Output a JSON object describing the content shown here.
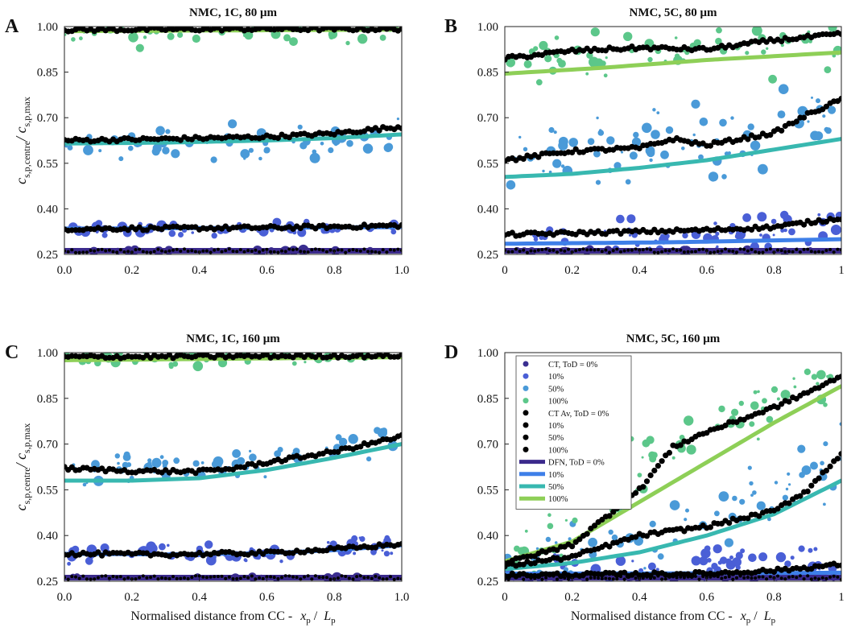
{
  "figure": {
    "ylabel_main": "c",
    "ylabel_sub1": "s,p,centre",
    "ylabel_slash": "/ c",
    "ylabel_sub2": "s,p,max",
    "xlabel_text": "Normalised distance from CC -",
    "xlabel_x": "x",
    "xlabel_xsub": "p",
    "xlabel_slash": "/",
    "xlabel_L": "L",
    "xlabel_Lsub": "p",
    "colors": {
      "ct_0": "#3a2f91",
      "ct_10": "#4a5fd6",
      "ct_50": "#4a9ad8",
      "ct_100": "#5cc78a",
      "ctav": "#000000",
      "dfn_0": "#3b2a8c",
      "dfn_10": "#3e7fe8",
      "dfn_50": "#38b8b0",
      "dfn_100": "#8ecf57"
    }
  },
  "legend": {
    "items": [
      {
        "label": "CT, ToD = 0%",
        "kind": "dot",
        "color": "#3a2f91"
      },
      {
        "label": "10%",
        "kind": "dot",
        "color": "#4a5fd6"
      },
      {
        "label": "50%",
        "kind": "dot",
        "color": "#4a9ad8"
      },
      {
        "label": "100%",
        "kind": "dot",
        "color": "#5cc78a"
      },
      {
        "label": "CT Av, ToD = 0%",
        "kind": "dot",
        "color": "#000000"
      },
      {
        "label": "10%",
        "kind": "dot",
        "color": "#000000"
      },
      {
        "label": "50%",
        "kind": "dot",
        "color": "#000000"
      },
      {
        "label": "100%",
        "kind": "dot",
        "color": "#000000"
      },
      {
        "label": "DFN, ToD = 0%",
        "kind": "line",
        "color": "#3b2a8c"
      },
      {
        "label": "10%",
        "kind": "line",
        "color": "#3e7fe8"
      },
      {
        "label": "50%",
        "kind": "line",
        "color": "#38b8b0"
      },
      {
        "label": "100%",
        "kind": "line",
        "color": "#8ecf57"
      }
    ]
  },
  "chart_data": [
    {
      "panel": "A",
      "type": "scatter",
      "title": "NMC, 1C, 80 μm",
      "xlim": [
        0,
        1
      ],
      "ylim": [
        0.25,
        1.0
      ],
      "xticks": [
        "0.0",
        "0.2",
        "0.4",
        "0.6",
        "0.8",
        "1.0"
      ],
      "yticks": [
        "0.25",
        "0.40",
        "0.55",
        "0.70",
        "0.85",
        "1.00"
      ],
      "ytick_values": [
        0.25,
        0.4,
        0.55,
        0.7,
        0.85,
        1.0
      ],
      "xtick_values": [
        0,
        0.2,
        0.4,
        0.6,
        0.8,
        1.0
      ],
      "show_xlabel": false,
      "show_ylabel": true,
      "dfn": {
        "0": {
          "x": [
            0,
            1
          ],
          "y": [
            0.262,
            0.262
          ]
        },
        "10": {
          "x": [
            0,
            0.5,
            1
          ],
          "y": [
            0.335,
            0.337,
            0.34
          ]
        },
        "50": {
          "x": [
            0,
            0.3,
            0.6,
            0.8,
            1
          ],
          "y": [
            0.615,
            0.618,
            0.625,
            0.633,
            0.645
          ]
        },
        "100": {
          "x": [
            0,
            1
          ],
          "y": [
            0.985,
            0.99
          ]
        }
      },
      "ctav": {
        "0": {
          "x": [
            0,
            1
          ],
          "y": [
            0.262,
            0.262
          ]
        },
        "10": {
          "x": [
            0,
            0.3,
            0.6,
            0.8,
            1
          ],
          "y": [
            0.334,
            0.336,
            0.338,
            0.341,
            0.345
          ]
        },
        "50": {
          "x": [
            0,
            0.3,
            0.6,
            0.8,
            0.9,
            1
          ],
          "y": [
            0.625,
            0.63,
            0.637,
            0.648,
            0.66,
            0.67
          ]
        },
        "100": {
          "x": [
            0,
            0.5,
            1
          ],
          "y": [
            0.989,
            0.992,
            0.992
          ]
        }
      },
      "ct": {
        "0": {
          "center": [
            [
              0,
              0.262
            ],
            [
              1,
              0.262
            ]
          ],
          "spread": 0.004,
          "n": 30
        },
        "10": {
          "center": [
            [
              0,
              0.33
            ],
            [
              1,
              0.338
            ]
          ],
          "spread": 0.02,
          "n": 60
        },
        "50": {
          "center": [
            [
              0,
              0.615
            ],
            [
              0.8,
              0.625
            ],
            [
              1,
              0.64
            ]
          ],
          "spread": 0.05,
          "n": 60
        },
        "100": {
          "center": [
            [
              0,
              0.975
            ],
            [
              1,
              0.985
            ]
          ],
          "spread": 0.04,
          "n": 45
        }
      }
    },
    {
      "panel": "B",
      "type": "scatter",
      "title": "NMC, 5C, 80 μm",
      "xlim": [
        0,
        1
      ],
      "ylim": [
        0.25,
        1.0
      ],
      "xticks": [
        "0",
        "0.2",
        "0.4",
        "0.6",
        "0.8",
        "1"
      ],
      "yticks": [
        "0.25",
        "0.40",
        "0.55",
        "0.70",
        "0.85",
        "1.00"
      ],
      "ytick_values": [
        0.25,
        0.4,
        0.55,
        0.7,
        0.85,
        1.0
      ],
      "xtick_values": [
        0,
        0.2,
        0.4,
        0.6,
        0.8,
        1.0
      ],
      "show_xlabel": false,
      "show_ylabel": false,
      "dfn": {
        "0": {
          "x": [
            0,
            1
          ],
          "y": [
            0.262,
            0.262
          ]
        },
        "10": {
          "x": [
            0,
            0.5,
            1
          ],
          "y": [
            0.285,
            0.29,
            0.3
          ]
        },
        "50": {
          "x": [
            0,
            0.2,
            0.4,
            0.6,
            0.8,
            1
          ],
          "y": [
            0.505,
            0.515,
            0.535,
            0.56,
            0.595,
            0.63
          ]
        },
        "100": {
          "x": [
            0,
            0.3,
            0.6,
            1
          ],
          "y": [
            0.845,
            0.865,
            0.89,
            0.915
          ]
        }
      },
      "ctav": {
        "0": {
          "x": [
            0,
            1
          ],
          "y": [
            0.262,
            0.262
          ]
        },
        "10": {
          "x": [
            0,
            0.2,
            0.4,
            0.6,
            0.8,
            1
          ],
          "y": [
            0.315,
            0.32,
            0.325,
            0.33,
            0.34,
            0.37
          ]
        },
        "50": {
          "x": [
            0,
            0.2,
            0.4,
            0.5,
            0.6,
            0.8,
            0.9,
            1
          ],
          "y": [
            0.56,
            0.59,
            0.6,
            0.63,
            0.61,
            0.65,
            0.71,
            0.76
          ]
        },
        "100": {
          "x": [
            0,
            0.2,
            0.4,
            0.6,
            0.8,
            1
          ],
          "y": [
            0.895,
            0.92,
            0.93,
            0.925,
            0.955,
            0.975
          ]
        }
      },
      "ct": {
        "0": {
          "center": [
            [
              0,
              0.262
            ],
            [
              1,
              0.262
            ]
          ],
          "spread": 0.004,
          "n": 30
        },
        "10": {
          "center": [
            [
              0,
              0.3
            ],
            [
              1,
              0.34
            ]
          ],
          "spread": 0.06,
          "n": 60
        },
        "50": {
          "center": [
            [
              0,
              0.56
            ],
            [
              0.6,
              0.62
            ],
            [
              1,
              0.72
            ]
          ],
          "spread": 0.12,
          "n": 80
        },
        "100": {
          "center": [
            [
              0,
              0.88
            ],
            [
              1,
              0.95
            ]
          ],
          "spread": 0.09,
          "n": 65
        }
      }
    },
    {
      "panel": "C",
      "type": "scatter",
      "title": "NMC, 1C, 160 μm",
      "xlim": [
        0,
        1
      ],
      "ylim": [
        0.25,
        1.0
      ],
      "xticks": [
        "0.0",
        "0.2",
        "0.4",
        "0.6",
        "0.8",
        "1.0"
      ],
      "yticks": [
        "0.25",
        "0.40",
        "0.55",
        "0.70",
        "0.85",
        "1.00"
      ],
      "ytick_values": [
        0.25,
        0.4,
        0.55,
        0.7,
        0.85,
        1.0
      ],
      "xtick_values": [
        0,
        0.2,
        0.4,
        0.6,
        0.8,
        1.0
      ],
      "show_xlabel": true,
      "show_ylabel": true,
      "dfn": {
        "0": {
          "x": [
            0,
            1
          ],
          "y": [
            0.262,
            0.262
          ]
        },
        "10": {
          "x": [
            0,
            0.3,
            0.6,
            0.8,
            1
          ],
          "y": [
            0.34,
            0.338,
            0.342,
            0.352,
            0.368
          ]
        },
        "50": {
          "x": [
            0,
            0.2,
            0.4,
            0.6,
            0.8,
            1
          ],
          "y": [
            0.58,
            0.58,
            0.588,
            0.615,
            0.655,
            0.7
          ]
        },
        "100": {
          "x": [
            0,
            1
          ],
          "y": [
            0.975,
            0.985
          ]
        }
      },
      "ctav": {
        "0": {
          "x": [
            0,
            1
          ],
          "y": [
            0.262,
            0.262
          ]
        },
        "10": {
          "x": [
            0,
            0.3,
            0.6,
            0.8,
            1
          ],
          "y": [
            0.34,
            0.338,
            0.343,
            0.355,
            0.372
          ]
        },
        "50": {
          "x": [
            0,
            0.2,
            0.4,
            0.5,
            0.6,
            0.8,
            1
          ],
          "y": [
            0.62,
            0.612,
            0.61,
            0.62,
            0.64,
            0.675,
            0.725
          ]
        },
        "100": {
          "x": [
            0,
            0.5,
            1
          ],
          "y": [
            0.986,
            0.988,
            0.99
          ]
        }
      },
      "ct": {
        "0": {
          "center": [
            [
              0,
              0.262
            ],
            [
              1,
              0.262
            ]
          ],
          "spread": 0.004,
          "n": 30
        },
        "10": {
          "center": [
            [
              0,
              0.338
            ],
            [
              0.6,
              0.342
            ],
            [
              1,
              0.37
            ]
          ],
          "spread": 0.03,
          "n": 70
        },
        "50": {
          "center": [
            [
              0,
              0.62
            ],
            [
              0.4,
              0.612
            ],
            [
              1,
              0.72
            ]
          ],
          "spread": 0.05,
          "n": 70
        },
        "100": {
          "center": [
            [
              0,
              0.98
            ],
            [
              1,
              0.988
            ]
          ],
          "spread": 0.03,
          "n": 55
        }
      }
    },
    {
      "panel": "D",
      "type": "scatter",
      "title": "NMC, 5C, 160 μm",
      "xlim": [
        0,
        1
      ],
      "ylim": [
        0.25,
        1.0
      ],
      "xticks": [
        "0",
        "0.2",
        "0.4",
        "0.6",
        "0.8",
        "1"
      ],
      "yticks": [
        "0.25",
        "0.40",
        "0.55",
        "0.70",
        "0.85",
        "1.00"
      ],
      "ytick_values": [
        0.25,
        0.4,
        0.55,
        0.7,
        0.85,
        1.0
      ],
      "xtick_values": [
        0,
        0.2,
        0.4,
        0.6,
        0.8,
        1.0
      ],
      "show_xlabel": true,
      "show_ylabel": false,
      "dfn": {
        "0": {
          "x": [
            0,
            1
          ],
          "y": [
            0.262,
            0.262
          ]
        },
        "10": {
          "x": [
            0,
            0.5,
            1
          ],
          "y": [
            0.275,
            0.276,
            0.278
          ]
        },
        "50": {
          "x": [
            0,
            0.2,
            0.4,
            0.6,
            0.8,
            1
          ],
          "y": [
            0.29,
            0.31,
            0.345,
            0.4,
            0.47,
            0.58
          ]
        },
        "100": {
          "x": [
            0,
            0.2,
            0.4,
            0.6,
            0.8,
            1
          ],
          "y": [
            0.315,
            0.38,
            0.51,
            0.64,
            0.77,
            0.89
          ]
        }
      },
      "ctav": {
        "0": {
          "x": [
            0,
            1
          ],
          "y": [
            0.262,
            0.262
          ]
        },
        "10": {
          "x": [
            0,
            0.6,
            0.8,
            1
          ],
          "y": [
            0.27,
            0.275,
            0.285,
            0.305
          ]
        },
        "50": {
          "x": [
            0,
            0.2,
            0.4,
            0.6,
            0.8,
            0.9,
            1
          ],
          "y": [
            0.3,
            0.33,
            0.4,
            0.43,
            0.48,
            0.55,
            0.67
          ]
        },
        "100": {
          "x": [
            0,
            0.2,
            0.4,
            0.5,
            0.6,
            0.8,
            1
          ],
          "y": [
            0.31,
            0.37,
            0.55,
            0.69,
            0.74,
            0.82,
            0.92
          ]
        }
      },
      "ct": {
        "0": {
          "center": [
            [
              0,
              0.262
            ],
            [
              1,
              0.262
            ]
          ],
          "spread": 0.004,
          "n": 30
        },
        "10": {
          "center": [
            [
              0,
              0.28
            ],
            [
              1,
              0.32
            ]
          ],
          "spread": 0.05,
          "n": 60
        },
        "50": {
          "center": [
            [
              0,
              0.3
            ],
            [
              0.5,
              0.42
            ],
            [
              1,
              0.65
            ]
          ],
          "spread": 0.12,
          "n": 70
        },
        "100": {
          "center": [
            [
              0,
              0.32
            ],
            [
              0.5,
              0.7
            ],
            [
              1,
              0.93
            ]
          ],
          "spread": 0.1,
          "n": 75
        }
      }
    }
  ]
}
